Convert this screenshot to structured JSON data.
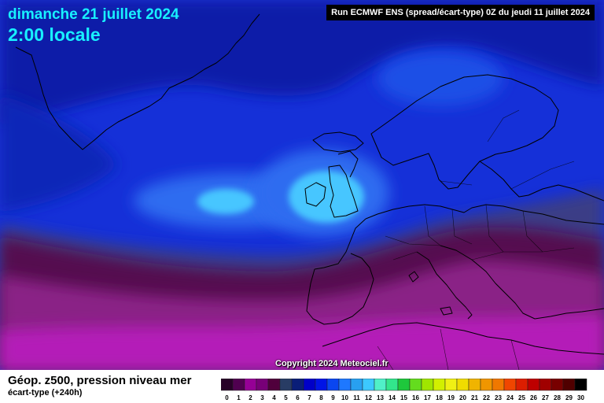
{
  "header": {
    "date": "dimanche 21 juillet 2024",
    "time": "2:00 locale",
    "run": "Run ECMWF ENS (spread/écart-type) 0Z du jeudi 11 juillet 2024"
  },
  "copyright": "Copyright 2024 Meteociel.fr",
  "footer": {
    "product": "Géop. z500, pression niveau mer",
    "subtitle": "écart-type  (+240h)"
  },
  "legend": {
    "labels": [
      "0",
      "1",
      "2",
      "3",
      "4",
      "5",
      "6",
      "7",
      "8",
      "9",
      "10",
      "11",
      "12",
      "13",
      "14",
      "15",
      "16",
      "17",
      "18",
      "19",
      "20",
      "21",
      "22",
      "23",
      "24",
      "25",
      "26",
      "27",
      "28",
      "29",
      "30"
    ],
    "colors": [
      "#280028",
      "#500050",
      "#960096",
      "#780078",
      "#50003c",
      "#283c64",
      "#0a1e78",
      "#0000c8",
      "#0014e6",
      "#0a46f0",
      "#1e78ff",
      "#28a0f0",
      "#3cc8ff",
      "#50f0c8",
      "#32e68c",
      "#1ec83c",
      "#64dc1e",
      "#a0e600",
      "#d2f000",
      "#f0f014",
      "#f0dc00",
      "#f0b400",
      "#f09600",
      "#f07800",
      "#f04600",
      "#dc1e00",
      "#be0000",
      "#a00000",
      "#780000",
      "#500000",
      "#000000"
    ]
  },
  "map_colors": {
    "ocean_dark": "#0b1ea8",
    "ocean_main": "#1530d8",
    "ocean_light": "#2f6cf0",
    "anomaly_core": "#46c6ff",
    "transition": "#3a3d86",
    "south_band": "#55114f",
    "south_mid": "#8a2486",
    "south_bright": "#b41cb8"
  }
}
